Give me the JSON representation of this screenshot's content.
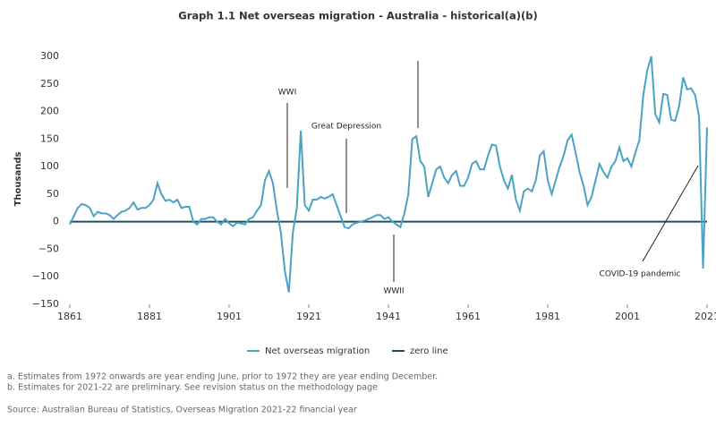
{
  "chart_data": {
    "type": "line",
    "title": "Graph 1.1 Net overseas migration - Australia - historical(a)(b)",
    "ylabel": "Thousands",
    "x": [
      1861,
      1862,
      1863,
      1864,
      1865,
      1866,
      1867,
      1868,
      1869,
      1870,
      1871,
      1872,
      1873,
      1874,
      1875,
      1876,
      1877,
      1878,
      1879,
      1880,
      1881,
      1882,
      1883,
      1884,
      1885,
      1886,
      1887,
      1888,
      1889,
      1890,
      1891,
      1892,
      1893,
      1894,
      1895,
      1896,
      1897,
      1898,
      1899,
      1900,
      1901,
      1902,
      1903,
      1904,
      1905,
      1906,
      1907,
      1908,
      1909,
      1910,
      1911,
      1912,
      1913,
      1914,
      1915,
      1916,
      1917,
      1918,
      1919,
      1920,
      1921,
      1922,
      1923,
      1924,
      1925,
      1926,
      1927,
      1928,
      1929,
      1930,
      1931,
      1932,
      1933,
      1934,
      1935,
      1936,
      1937,
      1938,
      1939,
      1940,
      1941,
      1942,
      1943,
      1944,
      1945,
      1946,
      1947,
      1948,
      1949,
      1950,
      1951,
      1952,
      1953,
      1954,
      1955,
      1956,
      1957,
      1958,
      1959,
      1960,
      1961,
      1962,
      1963,
      1964,
      1965,
      1966,
      1967,
      1968,
      1969,
      1970,
      1971,
      1972,
      1973,
      1974,
      1975,
      1976,
      1977,
      1978,
      1979,
      1980,
      1981,
      1982,
      1983,
      1984,
      1985,
      1986,
      1987,
      1988,
      1989,
      1990,
      1991,
      1992,
      1993,
      1994,
      1995,
      1996,
      1997,
      1998,
      1999,
      2000,
      2001,
      2002,
      2003,
      2004,
      2005,
      2006,
      2007,
      2008,
      2009,
      2010,
      2011,
      2012,
      2013,
      2014,
      2015,
      2016,
      2017,
      2018,
      2019,
      2020,
      2021
    ],
    "series": [
      {
        "name": "Net overseas migration",
        "color": "#4ba3c3",
        "values": [
          -5,
          10,
          25,
          32,
          30,
          25,
          10,
          18,
          15,
          15,
          12,
          5,
          12,
          18,
          20,
          25,
          35,
          22,
          25,
          25,
          30,
          40,
          70,
          50,
          38,
          40,
          35,
          40,
          25,
          27,
          27,
          0,
          -5,
          5,
          5,
          8,
          8,
          0,
          -5,
          5,
          -3,
          -8,
          -2,
          -3,
          -5,
          5,
          8,
          20,
          30,
          75,
          92,
          70,
          20,
          -20,
          -90,
          -128,
          -20,
          25,
          165,
          30,
          20,
          40,
          40,
          45,
          42,
          45,
          50,
          30,
          10,
          -10,
          -12,
          -5,
          -2,
          0,
          2,
          5,
          8,
          12,
          12,
          5,
          8,
          0,
          -5,
          -10,
          15,
          50,
          150,
          155,
          110,
          100,
          45,
          70,
          95,
          100,
          80,
          70,
          85,
          92,
          65,
          65,
          80,
          105,
          110,
          95,
          95,
          120,
          140,
          138,
          100,
          75,
          60,
          85,
          40,
          20,
          55,
          60,
          55,
          75,
          120,
          128,
          75,
          50,
          75,
          100,
          120,
          148,
          158,
          125,
          90,
          65,
          30,
          45,
          75,
          105,
          90,
          80,
          100,
          110,
          135,
          110,
          115,
          100,
          125,
          148,
          230,
          275,
          300,
          195,
          180,
          232,
          230,
          185,
          183,
          210,
          262,
          240,
          242,
          230,
          190,
          -85,
          171
        ]
      }
    ],
    "reference_lines": [
      {
        "name": "zero line",
        "value": 0,
        "color": "#1d4e60"
      }
    ],
    "xlim": [
      1861,
      2021
    ],
    "xticks": [
      1861,
      1881,
      1901,
      1921,
      1941,
      1961,
      1981,
      2001,
      2021
    ],
    "ylim": [
      -150,
      300
    ],
    "yticks": [
      {
        "value": -150,
        "label": "−150"
      },
      {
        "value": -100,
        "label": "−100"
      },
      {
        "value": -50,
        "label": "−50"
      },
      0,
      50,
      100,
      150,
      200,
      250,
      300
    ],
    "annotations": [
      "WWI",
      "Great Depression",
      "WWII",
      "COVID-19 pandemic"
    ],
    "footnotes": [
      "a. Estimates from 1972 onwards are year ending June, prior to 1972 they are year ending December.",
      "b. Estimates for 2021-22 are preliminary. See revision status on the methodology page"
    ],
    "source": "Source: Australian Bureau of Statistics, Overseas Migration 2021-22 financial year"
  }
}
